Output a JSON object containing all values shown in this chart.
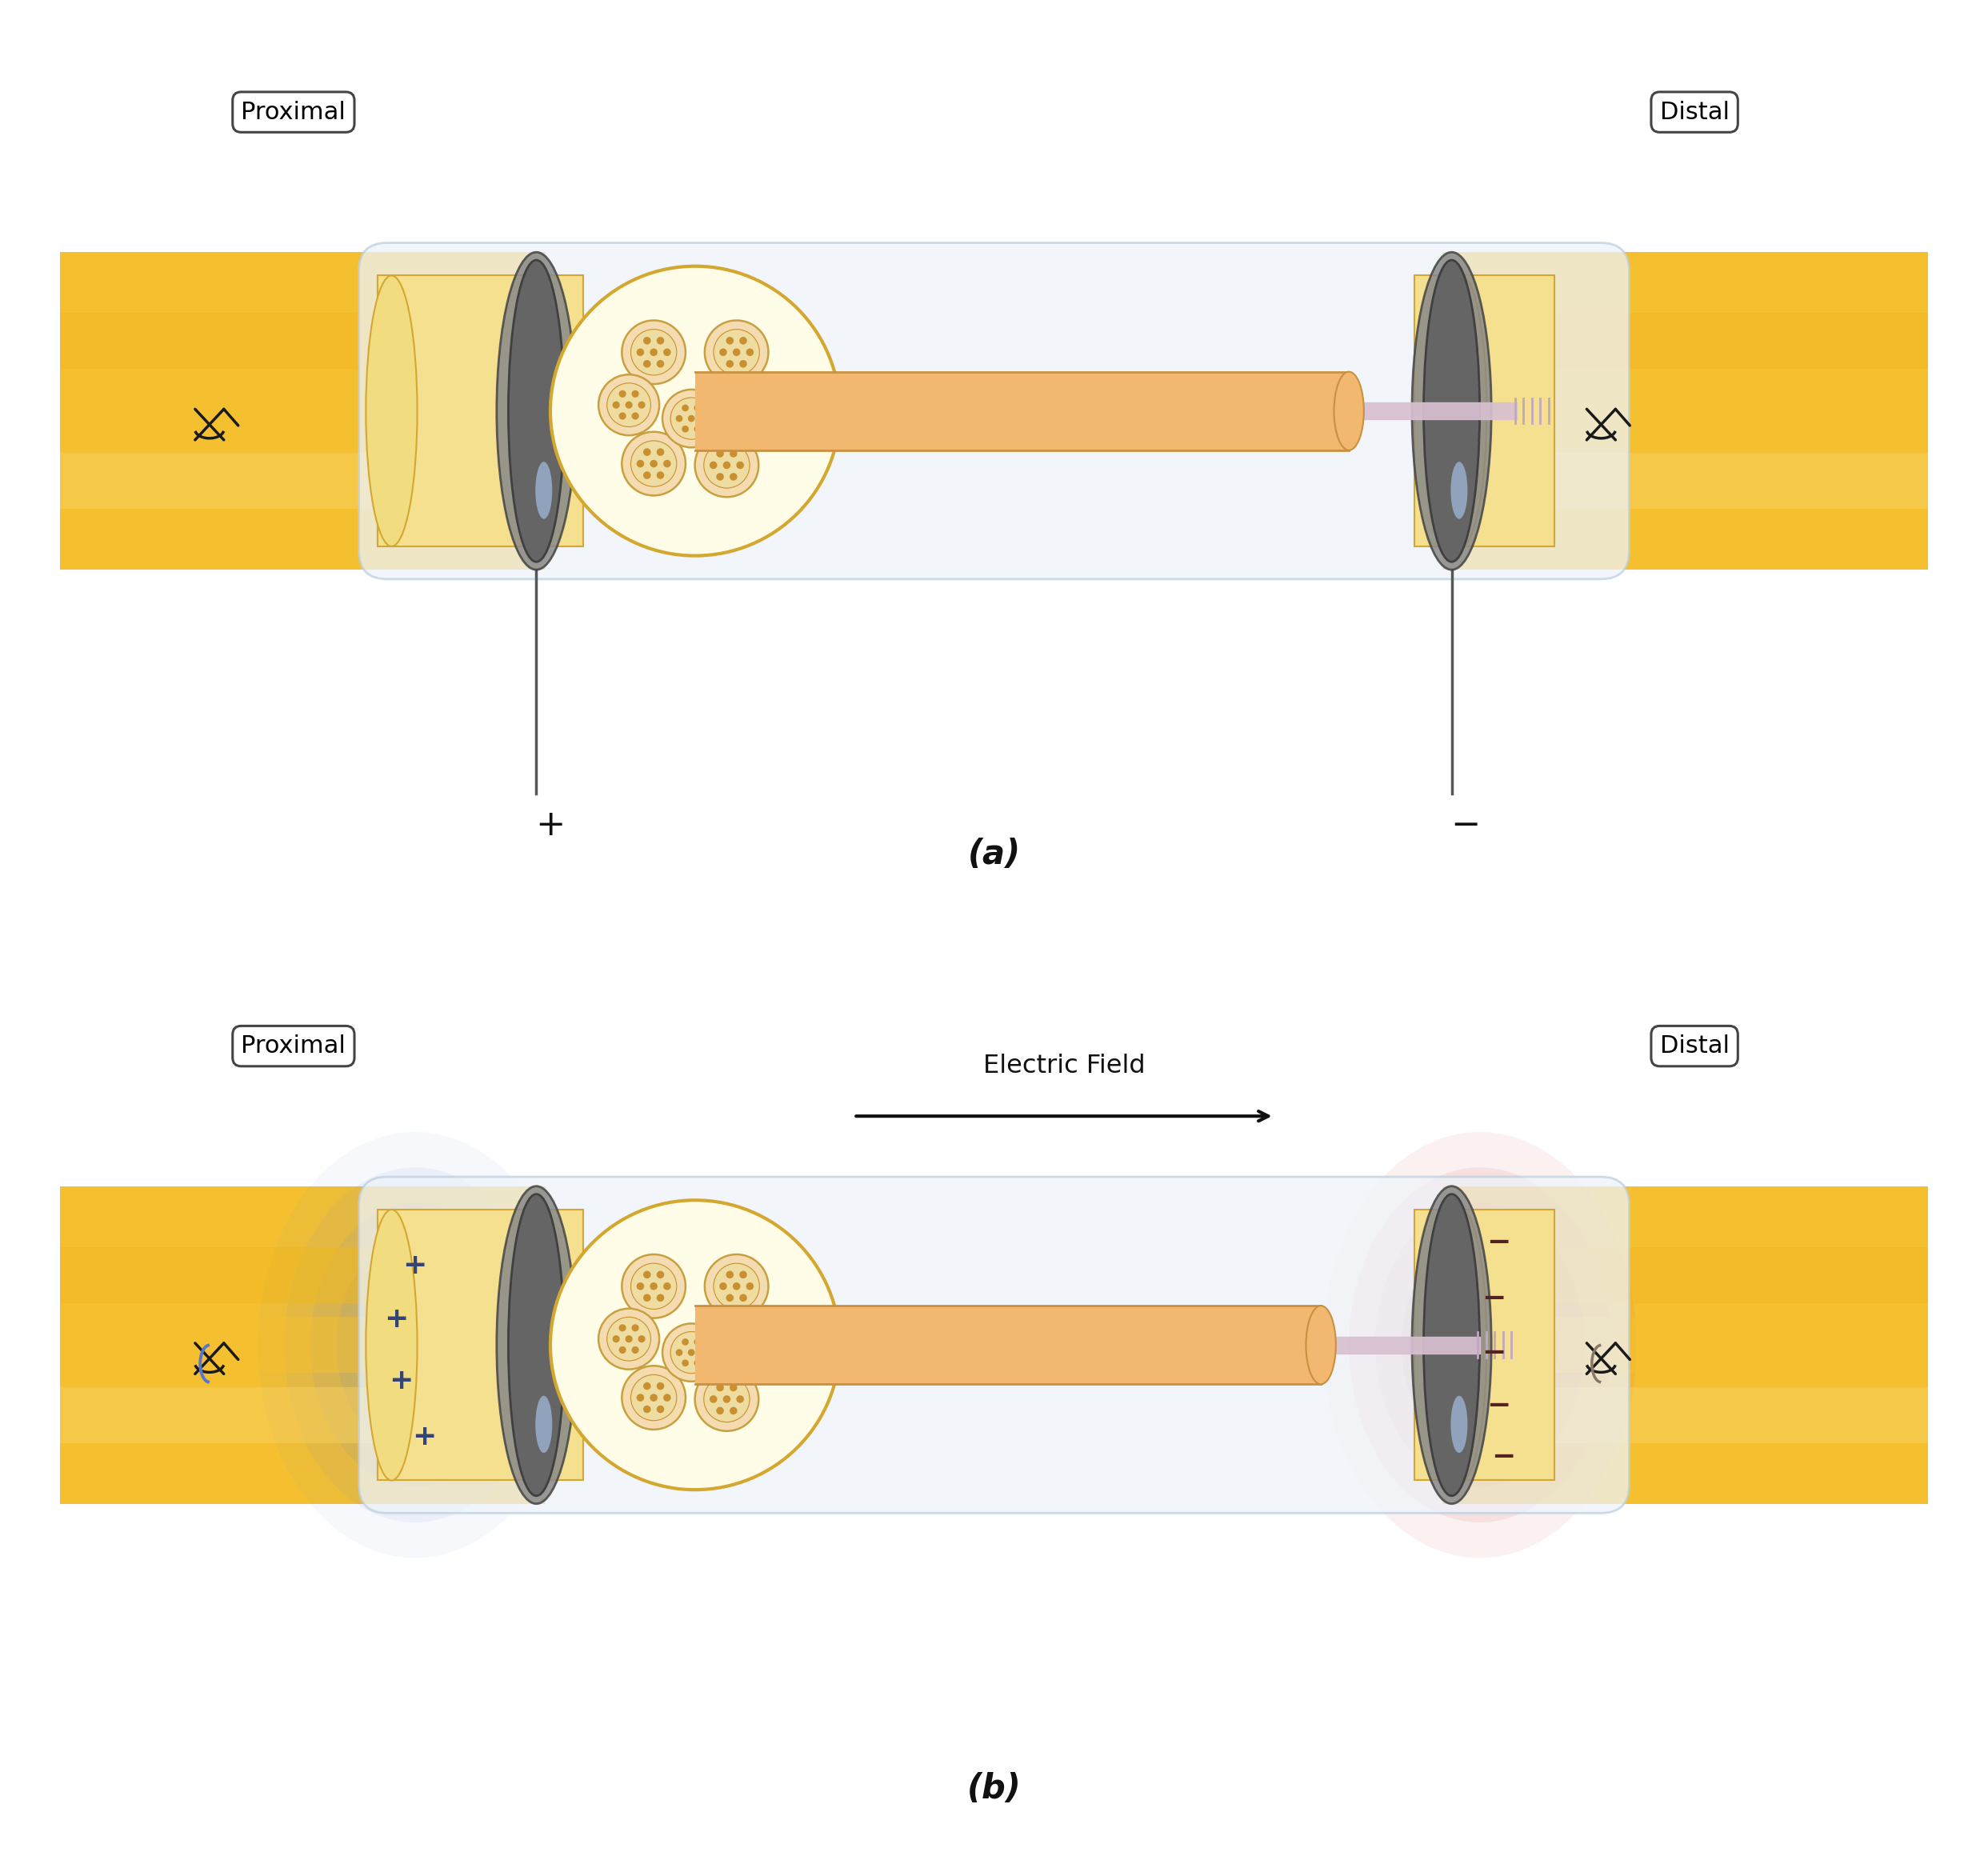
{
  "fig_width": 24.85,
  "fig_height": 23.35,
  "bg_color": "#ffffff",
  "nerve_yellow": "#F5C030",
  "nerve_yellow_light": "#F8D060",
  "nerve_yellow_dark": "#E0A020",
  "nerve_stripe_dark": "#E8B020",
  "nerve_inner_light": "#F8E8A0",
  "epineurium_bg": "#FFFDE8",
  "epineurium_border": "#D4A830",
  "fascicle_fill": "#F5DCB0",
  "fascicle_border": "#C8A040",
  "fascicle_inner": "#EEDCA0",
  "axon_dot": "#C89030",
  "electrode_gray": "#656565",
  "electrode_dark": "#404040",
  "electrode_highlight": "#8090B8",
  "tube_fill": "#EEF4FA",
  "tube_border": "#BDD0E0",
  "wire_color": "#575757",
  "suture_color": "#1a1a1a",
  "blue_charge": "#7090C8",
  "red_charge": "#CC5555",
  "label_edge": "#444444",
  "text_color": "#111111",
  "plus_color": "#222244",
  "minus_color": "#442222",
  "panel_a": "(a)",
  "panel_b": "(b)",
  "proximal": "Proximal",
  "distal": "Distal",
  "electric_field": "Electric Field",
  "cyl_fill": "#F2B870",
  "cyl_border": "#C89040",
  "wire_thin_fill": "#D8C0D0",
  "connector_color": "#C0A8C0"
}
